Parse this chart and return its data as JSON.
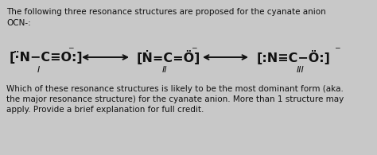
{
  "bg_color": "#c8c8c8",
  "text_color": "#111111",
  "title_line1": "The following three resonance structures are proposed for the cyanate anion",
  "title_line2": "OCN-:",
  "s1": "[⋅̈N−C≡O:]",
  "s2": "[Ṅ=C=Ö]",
  "s3": "[:N≡C−Ö:]",
  "label_I": "I",
  "label_II": "II",
  "label_III": "III",
  "bottom1": "Which of these resonance structures is likely to be the most dominant form (aka.",
  "bottom2": "the major resonance structure) for the cyanate anion. More than 1 structure may",
  "bottom3": "apply. Provide a brief explanation for full credit.",
  "figsize": [
    4.74,
    1.95
  ],
  "dpi": 100
}
